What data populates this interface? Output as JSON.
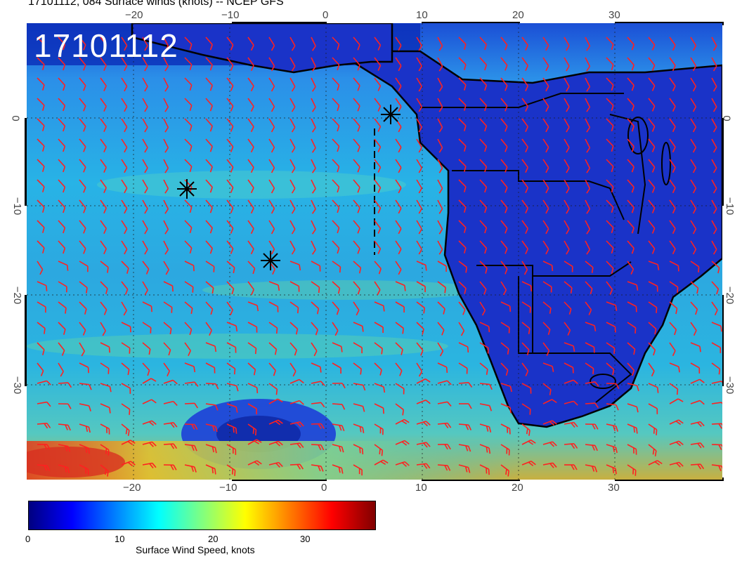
{
  "title": "17101112, 084 Surface winds (knots) -- NCEP GFS",
  "stamp": "17101112",
  "lon_labels": [
    "−20",
    "−10",
    "0",
    "10",
    "20",
    "30"
  ],
  "lat_labels": [
    "0",
    "−10",
    "−20",
    "−30"
  ],
  "colorbar": {
    "label": "Surface Wind Speed, knots",
    "ticks": [
      "0",
      "10",
      "20",
      "30"
    ],
    "colors": [
      "#000080",
      "#0000ff",
      "#0080ff",
      "#00ffff",
      "#80ff80",
      "#ffff00",
      "#ff8000",
      "#ff0000",
      "#800000"
    ]
  },
  "markers": [
    "asterisk",
    "asterisk",
    "asterisk"
  ],
  "colors": {
    "barb": "#ff2020",
    "coast": "#000000"
  }
}
